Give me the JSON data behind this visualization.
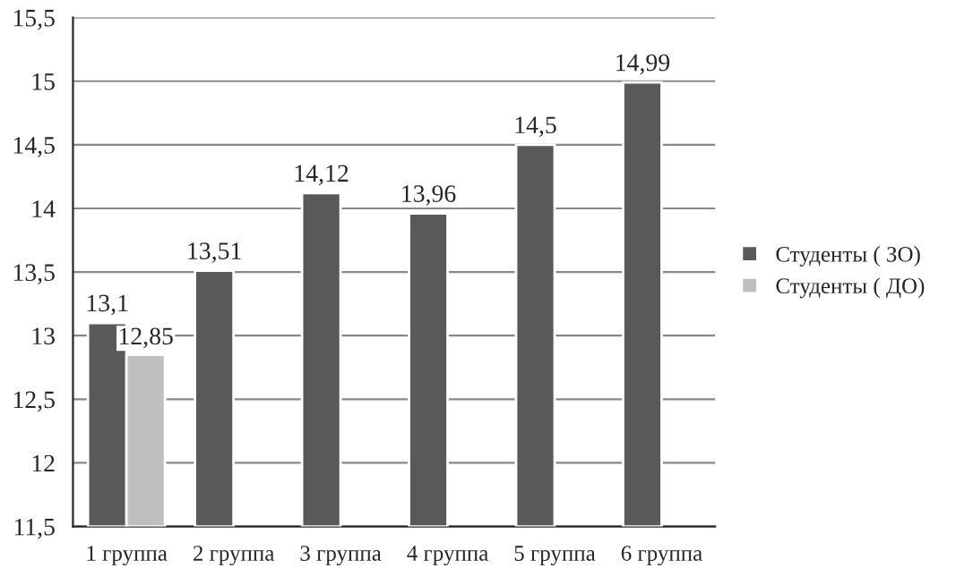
{
  "chart_data": {
    "type": "bar",
    "categories": [
      "1 группа",
      "2 группа",
      "3 группа",
      "4 группа",
      "5 группа",
      "6 группа"
    ],
    "series": [
      {
        "name": "Студенты ( ЗО)",
        "color": "#595959",
        "values": [
          13.1,
          13.51,
          14.12,
          13.96,
          14.5,
          14.99
        ],
        "value_labels": [
          "13,1",
          "13,51",
          "14,12",
          "13,96",
          "14,5",
          "14,99"
        ]
      },
      {
        "name": "Студенты ( ДО)",
        "color": "#bfbfbf",
        "values": [
          12.85,
          null,
          null,
          null,
          null,
          null
        ],
        "value_labels": [
          "12,85",
          null,
          null,
          null,
          null,
          null
        ]
      }
    ],
    "ylim": [
      11.5,
      15.5
    ],
    "yticks": [
      {
        "value": 11.5,
        "label": "11,5"
      },
      12,
      {
        "value": 12.5,
        "label": "12,5"
      },
      13,
      {
        "value": 13.5,
        "label": "13,5"
      },
      14,
      {
        "value": 14.5,
        "label": "14,5"
      },
      15,
      {
        "value": 15.5,
        "label": "15,5"
      }
    ],
    "grid": "y",
    "legend": "right"
  }
}
